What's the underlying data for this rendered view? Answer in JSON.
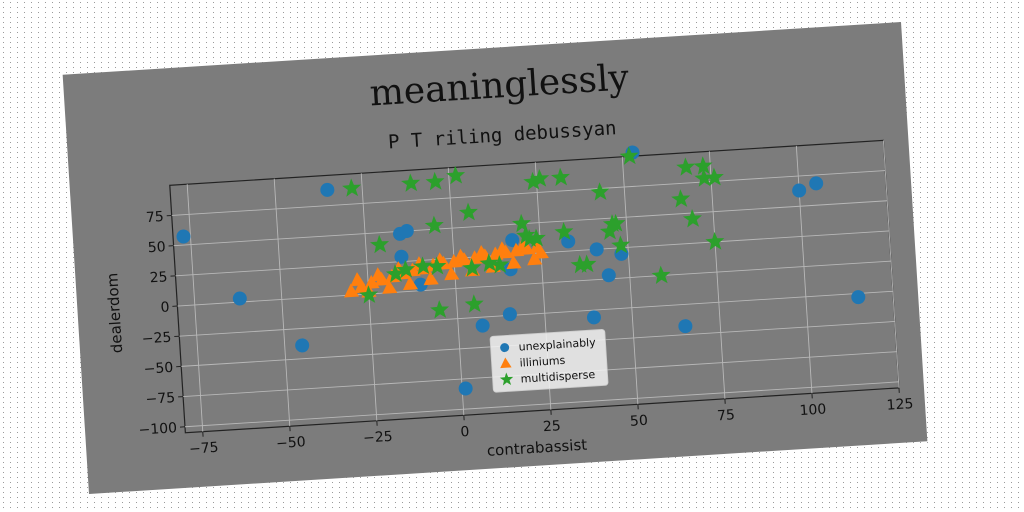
{
  "figure_title": "meaninglessly",
  "chart_data": {
    "type": "scatter",
    "title": "P T riling debussyan",
    "xlabel": "contrabassist",
    "ylabel": "dealerdom",
    "xlim": [
      -80,
      125
    ],
    "ylim": [
      -105,
      100
    ],
    "xticks": [
      -75,
      -50,
      -25,
      0,
      25,
      50,
      75,
      100,
      125
    ],
    "yticks": [
      -100,
      -75,
      -50,
      -25,
      0,
      25,
      50,
      75
    ],
    "grid": true,
    "legend_position": "lower center",
    "series": [
      {
        "name": "unexplainably",
        "marker": "circle",
        "color": "#1f77b4",
        "points": [
          [
            -77,
            57
          ],
          [
            -62,
            3
          ],
          [
            -45,
            -39
          ],
          [
            -35,
            88
          ],
          [
            -15,
            48
          ],
          [
            -13,
            50
          ],
          [
            -15,
            29
          ],
          [
            -10,
            5
          ],
          [
            7,
            -32
          ],
          [
            15,
            -24
          ],
          [
            16,
            13
          ],
          [
            17,
            37
          ],
          [
            33,
            33
          ],
          [
            39,
            -31
          ],
          [
            41,
            25
          ],
          [
            44,
            3
          ],
          [
            48,
            20
          ],
          [
            53,
            103
          ],
          [
            65,
            -43
          ],
          [
            100,
            63
          ],
          [
            105,
            68
          ],
          [
            115,
            -28
          ],
          [
            1,
            -83
          ]
        ]
      },
      {
        "name": "illiniums",
        "marker": "triangle",
        "color": "#ff7f0e",
        "points": [
          [
            -30,
            3
          ],
          [
            -27,
            6
          ],
          [
            -24,
            9
          ],
          [
            -21,
            11
          ],
          [
            -18,
            13
          ],
          [
            -15,
            15
          ],
          [
            -12,
            17
          ],
          [
            -9,
            18
          ],
          [
            -6,
            20
          ],
          [
            -3,
            21
          ],
          [
            0,
            22
          ],
          [
            3,
            23
          ],
          [
            6,
            24
          ],
          [
            9,
            25
          ],
          [
            12,
            26
          ],
          [
            15,
            27
          ],
          [
            18,
            28
          ],
          [
            21,
            29
          ],
          [
            24,
            30
          ],
          [
            -28,
            12
          ],
          [
            -22,
            15
          ],
          [
            -16,
            19
          ],
          [
            -10,
            22
          ],
          [
            -4,
            24
          ],
          [
            2,
            26
          ],
          [
            8,
            28
          ],
          [
            14,
            30
          ],
          [
            20,
            32
          ],
          [
            25,
            25
          ],
          [
            -25,
            2
          ],
          [
            -19,
            4
          ],
          [
            -13,
            6
          ],
          [
            -7,
            9
          ],
          [
            -1,
            12
          ],
          [
            5,
            14
          ],
          [
            11,
            16
          ],
          [
            17,
            18
          ],
          [
            23,
            20
          ]
        ]
      },
      {
        "name": "multidisperse",
        "marker": "star",
        "color": "#2ca02c",
        "points": [
          [
            -28,
            88
          ],
          [
            -11,
            89
          ],
          [
            -4,
            89
          ],
          [
            2,
            93
          ],
          [
            -5,
            53
          ],
          [
            5,
            62
          ],
          [
            -21,
            40
          ],
          [
            -17,
            15
          ],
          [
            -14,
            18
          ],
          [
            -9,
            20
          ],
          [
            -5,
            19
          ],
          [
            -25,
            -1
          ],
          [
            -5,
            -17
          ],
          [
            5,
            -14
          ],
          [
            5,
            16
          ],
          [
            10,
            19
          ],
          [
            13,
            17
          ],
          [
            20,
            50
          ],
          [
            21,
            40
          ],
          [
            22,
            37
          ],
          [
            24,
            37
          ],
          [
            24,
            84
          ],
          [
            26,
            86
          ],
          [
            32,
            86
          ],
          [
            32,
            41
          ],
          [
            36,
            13
          ],
          [
            38,
            13
          ],
          [
            43,
            72
          ],
          [
            45,
            39
          ],
          [
            46,
            45
          ],
          [
            47,
            45
          ],
          [
            48,
            27
          ],
          [
            52,
            100
          ],
          [
            59,
            0
          ],
          [
            66,
            62
          ],
          [
            68,
            88
          ],
          [
            69,
            45
          ],
          [
            73,
            88
          ],
          [
            73,
            78
          ],
          [
            75,
            25
          ],
          [
            76,
            78
          ]
        ]
      }
    ]
  }
}
